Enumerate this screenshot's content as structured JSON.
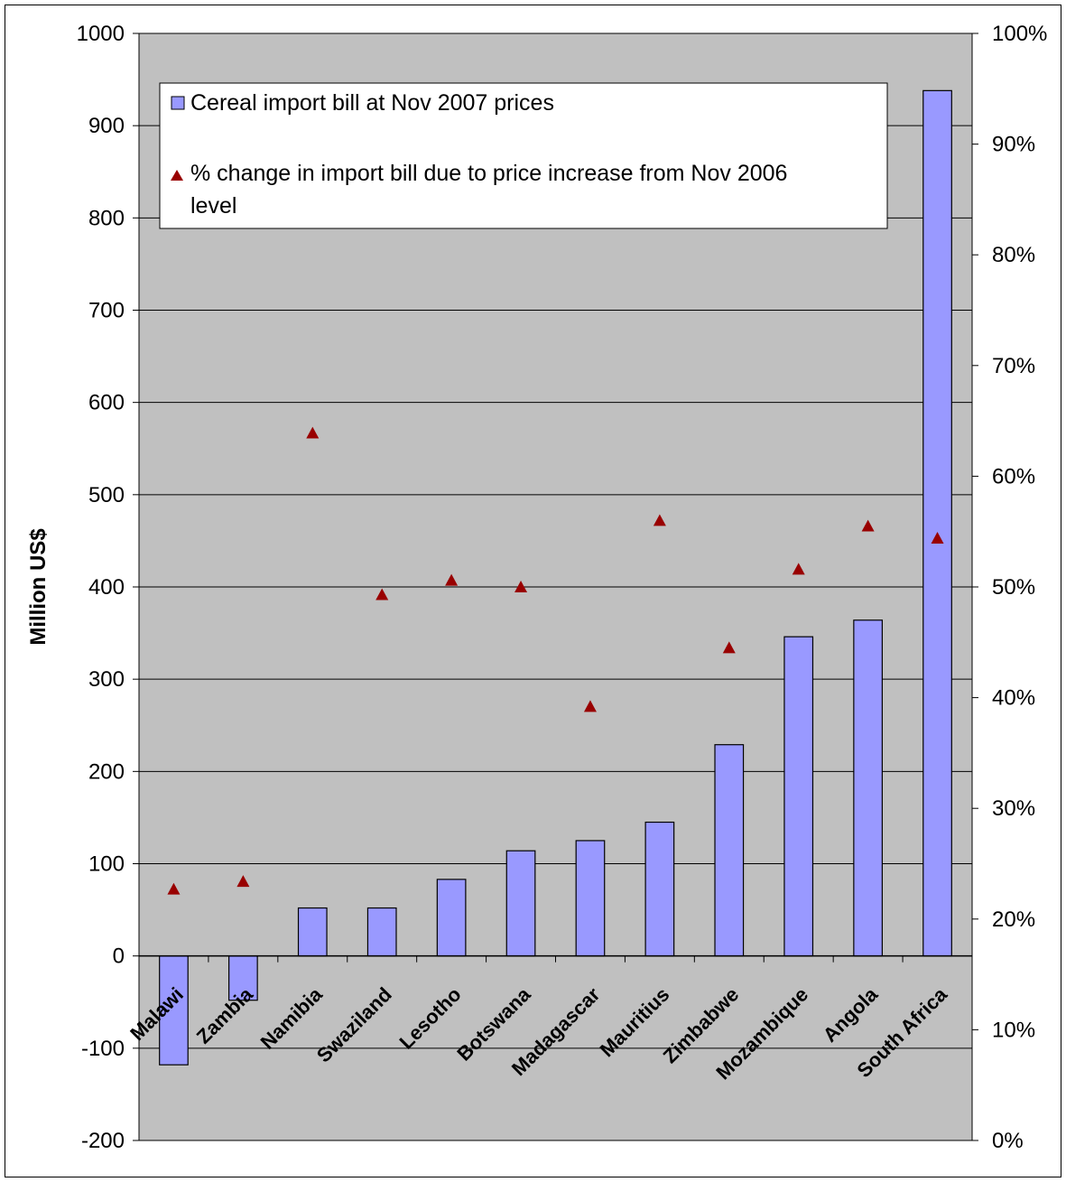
{
  "chart_data": {
    "type": "bar",
    "categories": [
      "Malawi",
      "Zambia",
      "Namibia",
      "Swaziland",
      "Lesotho",
      "Botswana",
      "Madagascar",
      "Mauritius",
      "Zimbabwe",
      "Mozambique",
      "Angola",
      "South Africa"
    ],
    "series": [
      {
        "name": "Cereal import bill at Nov 2007 prices",
        "type": "bar",
        "axis": "left",
        "color": "#9999ff",
        "values": [
          -118,
          -48,
          52,
          52,
          83,
          114,
          125,
          145,
          229,
          346,
          364,
          938
        ]
      },
      {
        "name": "% change in import bill due to price increase from Nov 2006 level",
        "type": "scatter",
        "axis": "right",
        "marker": "triangle",
        "color": "#990000",
        "values": [
          22.7,
          23.4,
          63.9,
          49.3,
          50.6,
          50.0,
          39.2,
          56.0,
          44.5,
          51.6,
          55.5,
          54.4
        ]
      }
    ],
    "ylabel": "Million US$",
    "ylim": [
      -200,
      1000
    ],
    "yticks": [
      "-200",
      "-100",
      "0",
      "100",
      "200",
      "300",
      "400",
      "500",
      "600",
      "700",
      "800",
      "900",
      "1000"
    ],
    "y2lim": [
      0,
      100
    ],
    "y2ticks": [
      "0%",
      "10%",
      "20%",
      "30%",
      "40%",
      "50%",
      "60%",
      "70%",
      "80%",
      "90%",
      "100%"
    ],
    "grid": true,
    "plot_background": "#c0c0c0",
    "legend_position": "top-left inside plot"
  }
}
